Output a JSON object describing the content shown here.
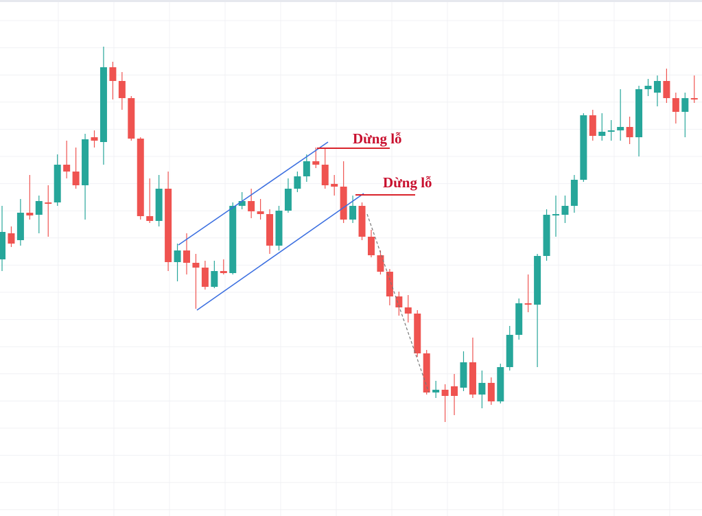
{
  "chart_data": {
    "type": "candlestick",
    "up_color": "#26a69a",
    "down_color": "#ef5350",
    "ylim": [
      0,
      752
    ],
    "grid": true,
    "open": [
      374,
      412,
      402,
      442,
      439,
      457,
      457,
      512,
      502,
      482,
      552,
      545,
      654,
      634,
      609,
      550,
      437,
      430,
      477,
      370,
      387,
      369,
      362,
      334,
      357,
      354,
      452,
      459,
      444,
      440,
      394,
      445,
      477,
      495,
      517,
      512,
      484,
      480,
      432,
      452,
      407,
      380,
      356,
      320,
      304,
      295,
      237,
      180,
      184,
      189,
      187,
      224,
      177,
      194,
      167,
      217,
      264,
      310,
      308,
      379,
      438,
      439,
      452,
      490,
      584,
      554,
      560,
      562,
      567,
      552,
      622,
      617,
      634,
      609,
      589,
      609
    ],
    "close": [
      414,
      397,
      442,
      438,
      459,
      455,
      512,
      502,
      482,
      549,
      547,
      654,
      634,
      609,
      550,
      437,
      430,
      477,
      370,
      387,
      369,
      362,
      334,
      357,
      354,
      452,
      459,
      444,
      440,
      394,
      445,
      477,
      495,
      517,
      512,
      482,
      480,
      432,
      452,
      407,
      380,
      356,
      320,
      304,
      295,
      237,
      180,
      184,
      175,
      175,
      224,
      177,
      194,
      167,
      217,
      264,
      310,
      308,
      379,
      439,
      440,
      452,
      490,
      584,
      554,
      560,
      562,
      567,
      552,
      622,
      627,
      634,
      609,
      589,
      609,
      607
    ],
    "high": [
      452,
      422,
      462,
      497,
      467,
      482,
      527,
      547,
      537,
      557,
      562,
      684,
      662,
      647,
      612,
      552,
      492,
      497,
      502,
      397,
      412,
      382,
      372,
      372,
      374,
      457,
      472,
      477,
      462,
      447,
      452,
      492,
      502,
      527,
      537,
      537,
      497,
      517,
      467,
      457,
      417,
      387,
      360,
      327,
      322,
      300,
      242,
      197,
      192,
      207,
      240,
      260,
      212,
      202,
      222,
      277,
      317,
      352,
      382,
      447,
      467,
      467,
      497,
      587,
      592,
      587,
      577,
      622,
      582,
      627,
      637,
      642,
      652,
      617,
      617,
      642
    ],
    "low": [
      357,
      392,
      394,
      432,
      412,
      407,
      452,
      492,
      477,
      432,
      537,
      512,
      607,
      592,
      547,
      432,
      427,
      422,
      357,
      342,
      352,
      302,
      330,
      332,
      352,
      352,
      447,
      434,
      432,
      382,
      387,
      442,
      472,
      487,
      507,
      477,
      467,
      427,
      427,
      402,
      377,
      352,
      307,
      292,
      282,
      232,
      177,
      172,
      137,
      147,
      182,
      172,
      157,
      162,
      164,
      212,
      257,
      297,
      217,
      372,
      407,
      427,
      442,
      487,
      547,
      547,
      547,
      547,
      542,
      524,
      612,
      597,
      602,
      572,
      552,
      602
    ],
    "annotations": [
      "Dừng lỗ",
      "Dừng lỗ"
    ]
  }
}
